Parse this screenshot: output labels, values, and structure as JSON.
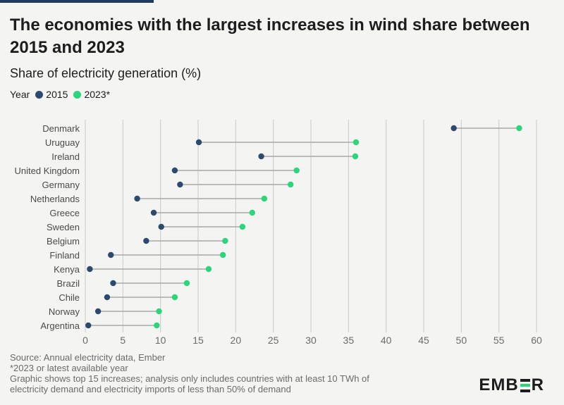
{
  "title": "The economies with the largest increases in wind share between 2015 and 2023",
  "subtitle": "Share of electricity generation (%)",
  "legend": {
    "label": "Year",
    "items": [
      {
        "name": "2015",
        "color": "#2d4a6e"
      },
      {
        "name": "2023*",
        "color": "#2bd67b"
      }
    ]
  },
  "chart_data": {
    "type": "dumbbell",
    "xlim": [
      0,
      60
    ],
    "xticks": [
      0,
      5,
      10,
      15,
      20,
      25,
      30,
      35,
      40,
      45,
      50,
      55,
      60
    ],
    "grid": true,
    "connector_color": "#a8a8a8",
    "categories": [
      "Denmark",
      "Uruguay",
      "Ireland",
      "United Kingdom",
      "Germany",
      "Netherlands",
      "Greece",
      "Sweden",
      "Belgium",
      "Finland",
      "Kenya",
      "Brazil",
      "Chile",
      "Norway",
      "Argentina"
    ],
    "series": [
      {
        "name": "2015",
        "color": "#2d4a6e",
        "values": [
          49.0,
          15.1,
          23.4,
          11.9,
          12.6,
          6.9,
          9.1,
          10.1,
          8.1,
          3.4,
          0.6,
          3.7,
          2.9,
          1.7,
          0.4
        ]
      },
      {
        "name": "2023*",
        "color": "#2bd67b",
        "values": [
          57.7,
          36.0,
          35.9,
          28.1,
          27.3,
          23.8,
          22.2,
          20.9,
          18.6,
          18.3,
          16.4,
          13.5,
          11.9,
          9.8,
          9.5
        ]
      }
    ]
  },
  "footer": {
    "line1": "Source: Annual electricity data, Ember",
    "line2": "*2023 or latest available year",
    "line3": "Graphic shows top 15 increases; analysis only includes countries with at least 10 TWh of",
    "line4": "electricity demand and electricity imports of less than 50% of demand"
  },
  "logo": {
    "part1": "EMB",
    "part2": "R"
  }
}
